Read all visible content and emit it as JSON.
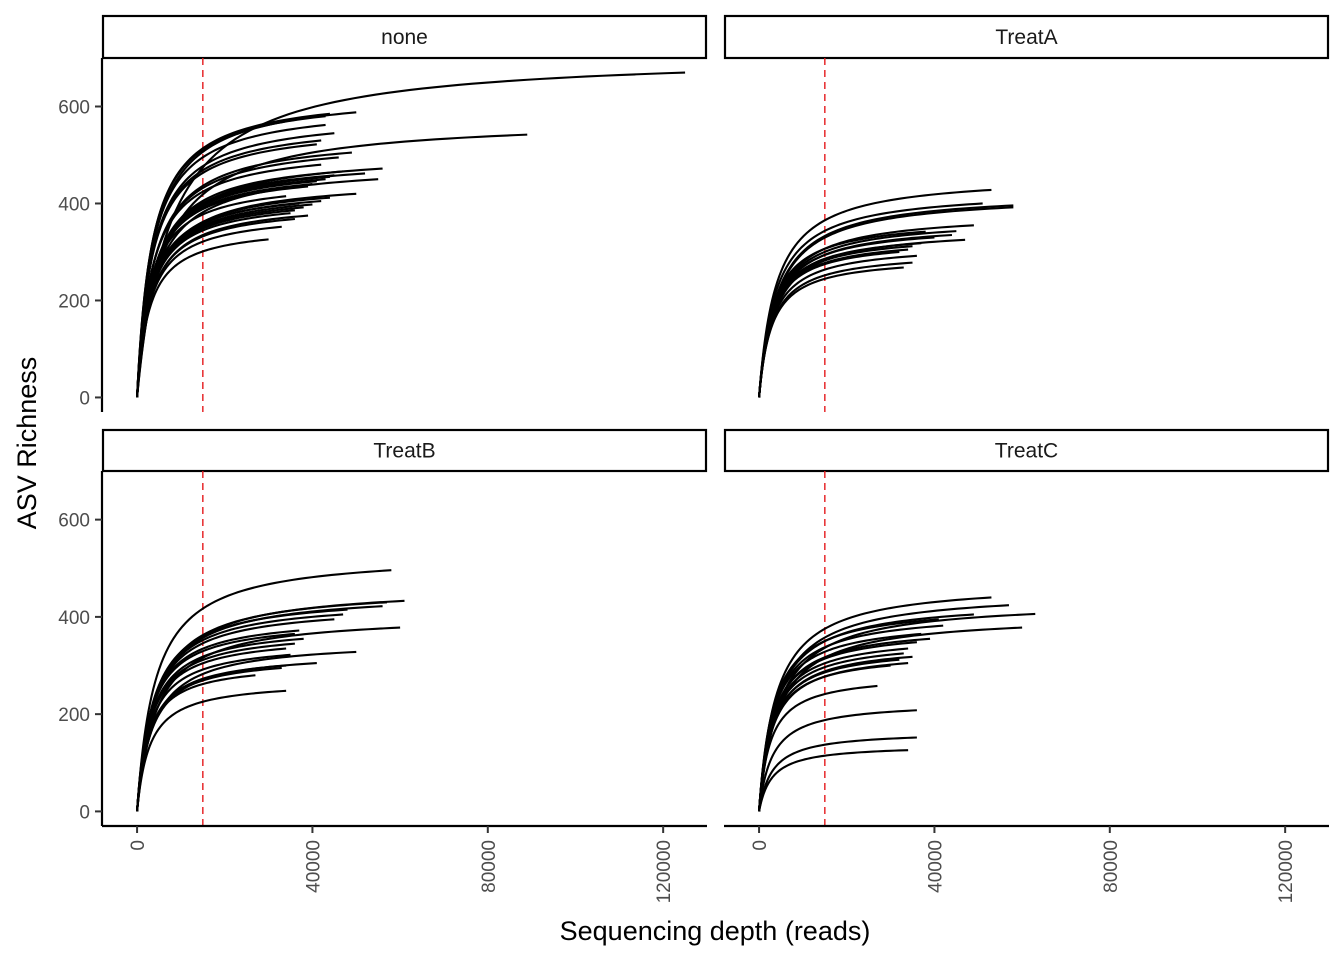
{
  "chart_data": {
    "type": "line",
    "xlabel": "Sequencing depth (reads)",
    "ylabel": "ASV Richness",
    "xlim": [
      -8000,
      130000
    ],
    "ylim": [
      -30,
      700
    ],
    "x_ticks": [
      0,
      40000,
      80000,
      120000
    ],
    "y_ticks": [
      0,
      200,
      400,
      600
    ],
    "x_tick_labels": [
      "0",
      "40000",
      "80000",
      "120000"
    ],
    "y_tick_labels": [
      "0",
      "200",
      "400",
      "600"
    ],
    "reference_line": {
      "x": 15000,
      "color": "#e41a1c",
      "style": "dashed"
    },
    "line_color": "#000000",
    "facets": [
      {
        "label": "none",
        "curves": [
          {
            "depth": 125000,
            "richness": 670
          },
          {
            "depth": 89000,
            "richness": 542
          },
          {
            "depth": 50000,
            "richness": 588
          },
          {
            "depth": 44000,
            "richness": 585
          },
          {
            "depth": 43000,
            "richness": 580
          },
          {
            "depth": 45000,
            "richness": 545
          },
          {
            "depth": 43000,
            "richness": 562
          },
          {
            "depth": 42000,
            "richness": 530
          },
          {
            "depth": 41000,
            "richness": 522
          },
          {
            "depth": 49000,
            "richness": 505
          },
          {
            "depth": 46000,
            "richness": 495
          },
          {
            "depth": 56000,
            "richness": 472
          },
          {
            "depth": 52000,
            "richness": 462
          },
          {
            "depth": 47000,
            "richness": 466
          },
          {
            "depth": 45000,
            "richness": 458
          },
          {
            "depth": 44000,
            "richness": 455
          },
          {
            "depth": 43000,
            "richness": 450
          },
          {
            "depth": 41000,
            "richness": 446
          },
          {
            "depth": 40000,
            "richness": 440
          },
          {
            "depth": 39000,
            "richness": 435
          },
          {
            "depth": 42000,
            "richness": 480
          },
          {
            "depth": 55000,
            "richness": 450
          },
          {
            "depth": 50000,
            "richness": 420
          },
          {
            "depth": 44000,
            "richness": 412
          },
          {
            "depth": 42000,
            "richness": 405
          },
          {
            "depth": 40000,
            "richness": 398
          },
          {
            "depth": 38000,
            "richness": 392
          },
          {
            "depth": 36000,
            "richness": 386
          },
          {
            "depth": 35000,
            "richness": 380
          },
          {
            "depth": 39000,
            "richness": 375
          },
          {
            "depth": 36000,
            "richness": 368
          },
          {
            "depth": 33000,
            "richness": 352
          },
          {
            "depth": 30000,
            "richness": 326
          },
          {
            "depth": 34000,
            "richness": 415
          },
          {
            "depth": 37000,
            "richness": 400
          }
        ]
      },
      {
        "label": "TreatA",
        "curves": [
          {
            "depth": 53000,
            "richness": 428
          },
          {
            "depth": 58000,
            "richness": 396
          },
          {
            "depth": 51000,
            "richness": 400
          },
          {
            "depth": 58000,
            "richness": 392
          },
          {
            "depth": 49000,
            "richness": 355
          },
          {
            "depth": 45000,
            "richness": 343
          },
          {
            "depth": 47000,
            "richness": 325
          },
          {
            "depth": 44000,
            "richness": 335
          },
          {
            "depth": 40000,
            "richness": 330
          },
          {
            "depth": 37000,
            "richness": 318
          },
          {
            "depth": 35000,
            "richness": 312
          },
          {
            "depth": 34000,
            "richness": 305
          },
          {
            "depth": 36000,
            "richness": 292
          },
          {
            "depth": 35000,
            "richness": 278
          },
          {
            "depth": 33000,
            "richness": 268
          },
          {
            "depth": 38000,
            "richness": 342
          },
          {
            "depth": 32000,
            "richness": 300
          }
        ]
      },
      {
        "label": "TreatB",
        "curves": [
          {
            "depth": 58000,
            "richness": 496
          },
          {
            "depth": 61000,
            "richness": 433
          },
          {
            "depth": 57000,
            "richness": 430
          },
          {
            "depth": 56000,
            "richness": 422
          },
          {
            "depth": 48000,
            "richness": 415
          },
          {
            "depth": 47000,
            "richness": 405
          },
          {
            "depth": 45000,
            "richness": 395
          },
          {
            "depth": 60000,
            "richness": 378
          },
          {
            "depth": 37000,
            "richness": 372
          },
          {
            "depth": 36000,
            "richness": 365
          },
          {
            "depth": 38000,
            "richness": 355
          },
          {
            "depth": 36000,
            "richness": 345
          },
          {
            "depth": 34000,
            "richness": 335
          },
          {
            "depth": 50000,
            "richness": 328
          },
          {
            "depth": 35000,
            "richness": 322
          },
          {
            "depth": 41000,
            "richness": 305
          },
          {
            "depth": 34000,
            "richness": 300
          },
          {
            "depth": 33000,
            "richness": 295
          },
          {
            "depth": 27000,
            "richness": 280
          },
          {
            "depth": 34000,
            "richness": 248
          }
        ]
      },
      {
        "label": "TreatC",
        "curves": [
          {
            "depth": 53000,
            "richness": 440
          },
          {
            "depth": 57000,
            "richness": 424
          },
          {
            "depth": 63000,
            "richness": 406
          },
          {
            "depth": 49000,
            "richness": 405
          },
          {
            "depth": 60000,
            "richness": 378
          },
          {
            "depth": 41000,
            "richness": 395
          },
          {
            "depth": 42000,
            "richness": 382
          },
          {
            "depth": 37000,
            "richness": 365
          },
          {
            "depth": 39000,
            "richness": 355
          },
          {
            "depth": 36000,
            "richness": 348
          },
          {
            "depth": 34000,
            "richness": 335
          },
          {
            "depth": 33000,
            "richness": 325
          },
          {
            "depth": 35000,
            "richness": 318
          },
          {
            "depth": 32000,
            "richness": 312
          },
          {
            "depth": 34000,
            "richness": 305
          },
          {
            "depth": 30000,
            "richness": 300
          },
          {
            "depth": 27000,
            "richness": 258
          },
          {
            "depth": 36000,
            "richness": 208
          },
          {
            "depth": 36000,
            "richness": 152
          },
          {
            "depth": 34000,
            "richness": 126
          }
        ]
      }
    ]
  }
}
